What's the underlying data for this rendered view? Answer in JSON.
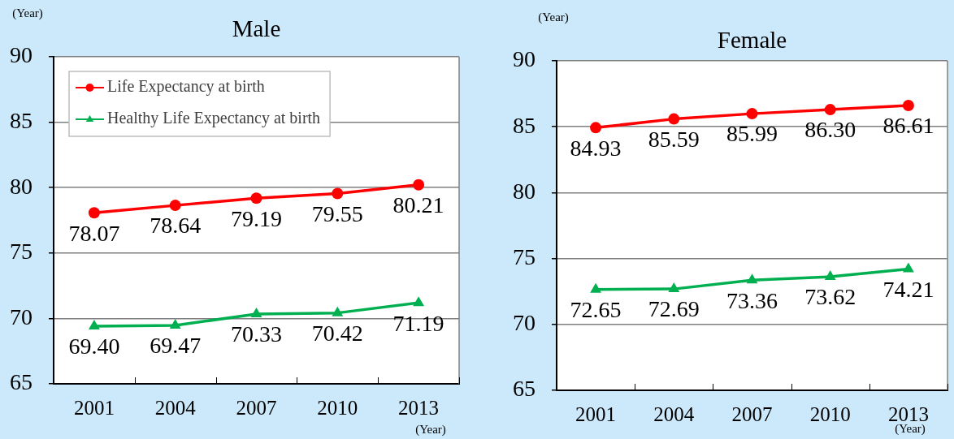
{
  "chart_data": [
    {
      "type": "line",
      "title": "Male",
      "ylabel": "(Year)",
      "xlabel": "(Year)",
      "categories": [
        "2001",
        "2004",
        "2007",
        "2010",
        "2013"
      ],
      "series": [
        {
          "name": "Life Expectancy at birth",
          "color": "#ff0000",
          "marker": "circle",
          "values": [
            78.07,
            78.64,
            79.19,
            79.55,
            80.21
          ],
          "value_labels": [
            "78.07",
            "78.64",
            "79.19",
            "79.55",
            "80.21"
          ]
        },
        {
          "name": "Healthy Life Expectancy at birth",
          "color": "#00b050",
          "marker": "triangle",
          "values": [
            69.4,
            69.47,
            70.33,
            70.42,
            71.19
          ],
          "value_labels": [
            "69.40",
            "69.47",
            "70.33",
            "70.42",
            "71.19"
          ]
        }
      ],
      "ylim": [
        65,
        90
      ],
      "yticks": [
        65,
        70,
        75,
        80,
        85,
        90
      ],
      "grid": "y",
      "legend": "top left"
    },
    {
      "type": "line",
      "title": "Female",
      "ylabel": "(Year)",
      "xlabel": "(Year)",
      "categories": [
        "2001",
        "2004",
        "2007",
        "2010",
        "2013"
      ],
      "series": [
        {
          "color": "#ff0000",
          "marker": "circle",
          "values": [
            84.93,
            85.59,
            85.99,
            86.3,
            86.61
          ],
          "value_labels": [
            "84.93",
            "85.59",
            "85.99",
            "86.30",
            "86.61"
          ]
        },
        {
          "color": "#00b050",
          "marker": "triangle",
          "values": [
            72.65,
            72.69,
            73.36,
            73.62,
            74.21
          ],
          "value_labels": [
            "72.65",
            "72.69",
            "73.36",
            "73.62",
            "74.21"
          ]
        }
      ],
      "ylim": [
        65,
        90
      ],
      "yticks": [
        65,
        70,
        75,
        80,
        85,
        90
      ],
      "grid": "y"
    }
  ]
}
